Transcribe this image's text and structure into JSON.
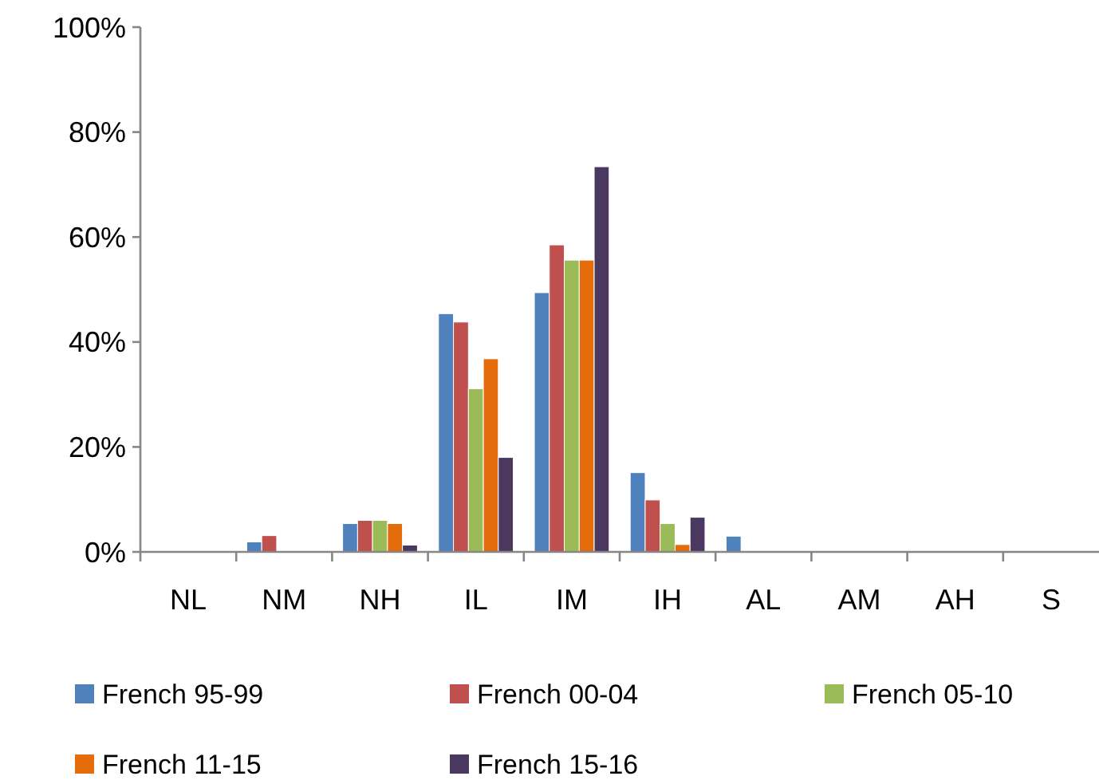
{
  "chart_data": {
    "type": "bar",
    "categories": [
      "NL",
      "NM",
      "NH",
      "IL",
      "IM",
      "IH",
      "AL",
      "AM",
      "AH",
      "S"
    ],
    "series": [
      {
        "name": "French 95-99",
        "color": "#4f81bd",
        "values": [
          0,
          1.9,
          5.4,
          45.4,
          49.4,
          15.1,
          3.0,
          0,
          0,
          0
        ]
      },
      {
        "name": "French 00-04",
        "color": "#c0504d",
        "values": [
          0,
          3.1,
          6.0,
          43.8,
          58.5,
          9.9,
          0,
          0,
          0,
          0
        ]
      },
      {
        "name": "French 05-10",
        "color": "#9bbb59",
        "values": [
          0,
          0,
          6.0,
          31.1,
          55.6,
          5.4,
          0,
          0,
          0,
          0
        ]
      },
      {
        "name": "French 11-15",
        "color": "#e46c0a",
        "values": [
          0,
          0,
          5.4,
          36.8,
          55.6,
          1.4,
          0,
          0,
          0,
          0
        ]
      },
      {
        "name": "French 15-16",
        "color": "#4b3860",
        "values": [
          0,
          0,
          1.3,
          18.0,
          73.4,
          6.6,
          0,
          0,
          0,
          0
        ]
      }
    ],
    "ylim": [
      0,
      100
    ],
    "yticks": [
      {
        "value": 0,
        "label": "0%"
      },
      {
        "value": 20,
        "label": "20%"
      },
      {
        "value": 40,
        "label": "40%"
      },
      {
        "value": 60,
        "label": "60%"
      },
      {
        "value": 80,
        "label": "80%"
      },
      {
        "value": 100,
        "label": "100%"
      }
    ],
    "grid": false,
    "legend": "bottom"
  }
}
